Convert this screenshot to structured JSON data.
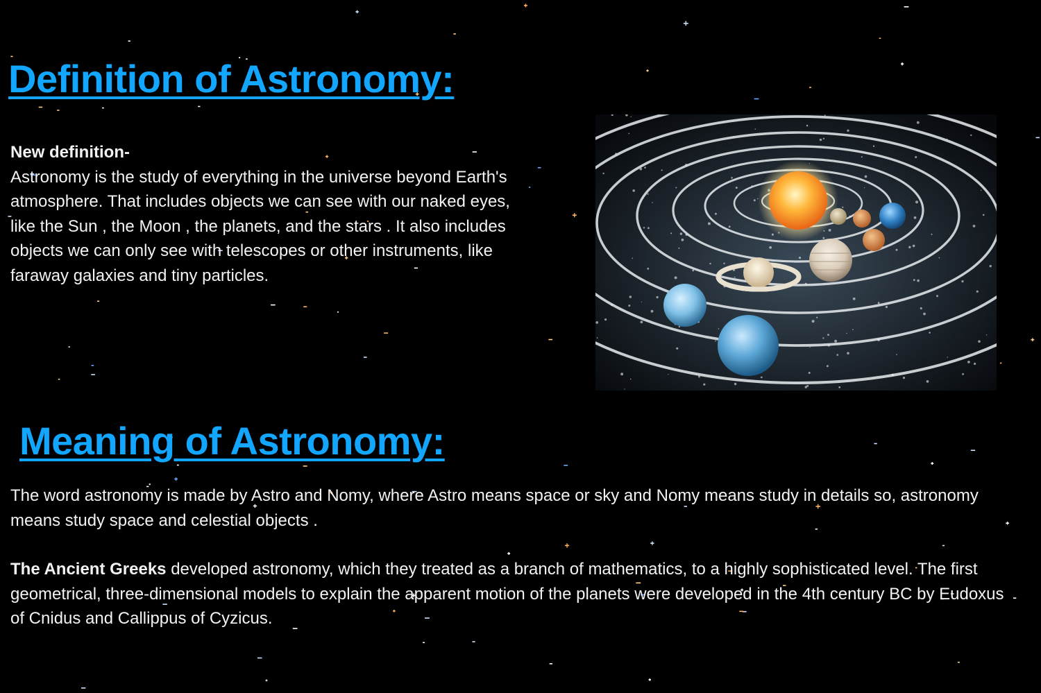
{
  "definition": {
    "heading": "Definition of Astronomy:",
    "subheading": "New definition-",
    "body": "Astronomy is the study of everything in the universe beyond Earth's atmosphere. That includes objects we can see with our naked eyes, like the Sun , the Moon , the planets, and the stars . It also includes objects we can only see with telescopes or other instruments, like faraway galaxies and tiny particles."
  },
  "meaning": {
    "heading": "Meaning of Astronomy:",
    "body": "The word astronomy is made by Astro and Nomy, where Astro means space or sky and Nomy means study in details so, astronomy means study space and celestial objects .",
    "greeks_bold": "The Ancient Greeks",
    "greeks_body": " developed astronomy, which they treated as a branch of mathematics, to a highly sophisticated level. The first geometrical, three-dimensional models to explain the apparent motion of the planets were developed in the 4th century BC by Eudoxus of Cnidus and Callippus of Cyzicus."
  },
  "colors": {
    "background": "#000000",
    "heading": "#12a6ff",
    "text": "#f2f2f2"
  },
  "image": {
    "icon": "solar-system-illustration"
  }
}
